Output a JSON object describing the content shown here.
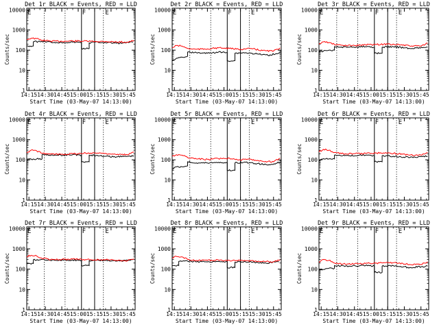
{
  "chart_data": [
    {
      "type": "line",
      "title": "Det 1r BLACK = Events, RED = LLD",
      "xlabel": "Start Time (03-May-07 14:13:00)",
      "ylabel": "Counts/sec",
      "x_ticks": [
        "14:15",
        "14:30",
        "14:45",
        "15:00",
        "15:15",
        "15:30",
        "15:45"
      ],
      "y_ticks": [
        "1",
        "10",
        "100",
        "1000",
        "10000"
      ],
      "ylim": [
        1,
        12000
      ],
      "y_log": true,
      "solid_lines": [
        "15:03",
        "15:15"
      ],
      "dotted_lines": [
        "14:29",
        "14:48",
        "15:23"
      ],
      "flags": [
        "F",
        "E"
      ],
      "flag_times": [
        "15:03",
        "15:24"
      ],
      "series": [
        {
          "color": "#000000",
          "x": [
            "14:13",
            "14:19",
            "14:19",
            "14:27",
            "14:40",
            "14:55",
            "15:03",
            "15:03",
            "15:10",
            "15:10",
            "15:15",
            "15:25",
            "15:38",
            "15:50"
          ],
          "y": [
            160,
            160,
            260,
            270,
            240,
            250,
            240,
            120,
            120,
            230,
            250,
            240,
            220,
            250
          ]
        },
        {
          "color": "#ff0000",
          "x": [
            "14:13",
            "14:17",
            "14:22",
            "14:27",
            "14:35",
            "14:45",
            "14:55",
            "15:05",
            "15:15",
            "15:25",
            "15:35",
            "15:45",
            "15:51"
          ],
          "y": [
            340,
            390,
            370,
            310,
            280,
            275,
            285,
            280,
            270,
            270,
            255,
            250,
            300
          ]
        }
      ]
    },
    {
      "type": "line",
      "title": "Det 2r BLACK = Events, RED = LLD",
      "xlabel": "Start Time (03-May-07 14:13:00)",
      "ylabel": "Counts/sec",
      "x_ticks": [
        "14:15",
        "14:30",
        "14:45",
        "15:00",
        "15:15",
        "15:30",
        "15:45"
      ],
      "y_ticks": [
        "1",
        "10",
        "100",
        "1000",
        "10000"
      ],
      "ylim": [
        1,
        12000
      ],
      "y_log": true,
      "solid_lines": [
        "15:03",
        "15:15"
      ],
      "dotted_lines": [
        "14:29",
        "14:48",
        "15:23"
      ],
      "flags": [
        "F",
        "E"
      ],
      "flag_times": [
        "15:03",
        "15:24"
      ],
      "series": [
        {
          "color": "#000000",
          "x": [
            "14:13",
            "14:17",
            "14:22",
            "14:27",
            "14:27",
            "14:35",
            "14:45",
            "14:55",
            "15:03",
            "15:03",
            "15:10",
            "15:10",
            "15:18",
            "15:30",
            "15:40",
            "15:51"
          ],
          "y": [
            30,
            40,
            45,
            50,
            80,
            75,
            70,
            80,
            75,
            30,
            30,
            70,
            75,
            65,
            55,
            75
          ]
        },
        {
          "color": "#ff0000",
          "x": [
            "14:13",
            "14:17",
            "14:22",
            "14:27",
            "14:35",
            "14:45",
            "14:55",
            "15:05",
            "15:15",
            "15:25",
            "15:35",
            "15:45",
            "15:51"
          ],
          "y": [
            130,
            170,
            160,
            120,
            110,
            115,
            130,
            120,
            110,
            120,
            95,
            90,
            130
          ]
        }
      ]
    },
    {
      "type": "line",
      "title": "Det 3r BLACK = Events, RED = LLD",
      "xlabel": "Start Time (03-May-07 14:13:00)",
      "ylabel": "Counts/sec",
      "x_ticks": [
        "14:15",
        "14:30",
        "14:45",
        "15:00",
        "15:15",
        "15:30",
        "15:45"
      ],
      "y_ticks": [
        "1",
        "10",
        "100",
        "1000",
        "10000"
      ],
      "ylim": [
        1,
        12000
      ],
      "y_log": true,
      "solid_lines": [
        "15:03",
        "15:15"
      ],
      "dotted_lines": [
        "14:29",
        "14:48",
        "15:23"
      ],
      "flags": [
        "F",
        "E"
      ],
      "flag_times": [
        "15:03",
        "15:24"
      ],
      "series": [
        {
          "color": "#000000",
          "x": [
            "14:13",
            "14:19",
            "14:22",
            "14:27",
            "14:27",
            "14:40",
            "14:55",
            "15:03",
            "15:03",
            "15:10",
            "15:10",
            "15:20",
            "15:35",
            "15:51"
          ],
          "y": [
            80,
            95,
            100,
            100,
            150,
            140,
            150,
            140,
            70,
            70,
            140,
            150,
            120,
            140
          ]
        },
        {
          "color": "#ff0000",
          "x": [
            "14:13",
            "14:17",
            "14:22",
            "14:27",
            "14:35",
            "14:45",
            "14:55",
            "15:05",
            "15:15",
            "15:25",
            "15:35",
            "15:45",
            "15:51"
          ],
          "y": [
            200,
            260,
            240,
            190,
            170,
            170,
            185,
            190,
            200,
            190,
            160,
            160,
            220
          ]
        }
      ]
    },
    {
      "type": "line",
      "title": "Det 4r BLACK = Events, RED = LLD",
      "xlabel": "Start Time (03-May-07 14:13:00)",
      "ylabel": "Counts/sec",
      "x_ticks": [
        "14:15",
        "14:30",
        "14:45",
        "15:00",
        "15:15",
        "15:30",
        "15:45"
      ],
      "y_ticks": [
        "1",
        "10",
        "100",
        "1000",
        "10000"
      ],
      "ylim": [
        1,
        12000
      ],
      "y_log": true,
      "solid_lines": [
        "15:03",
        "15:15"
      ],
      "dotted_lines": [
        "14:29",
        "14:48",
        "15:23"
      ],
      "flags": [
        "F",
        "E"
      ],
      "flag_times": [
        "15:03",
        "15:24"
      ],
      "series": [
        {
          "color": "#000000",
          "x": [
            "14:13",
            "14:19",
            "14:22",
            "14:27",
            "14:27",
            "14:40",
            "14:55",
            "15:03",
            "15:03",
            "15:10",
            "15:10",
            "15:20",
            "15:35",
            "15:51"
          ],
          "y": [
            100,
            110,
            110,
            110,
            180,
            170,
            180,
            170,
            80,
            80,
            170,
            160,
            140,
            160
          ]
        },
        {
          "color": "#ff0000",
          "x": [
            "14:13",
            "14:17",
            "14:22",
            "14:27",
            "14:35",
            "14:45",
            "14:55",
            "15:05",
            "15:15",
            "15:25",
            "15:35",
            "15:45",
            "15:51"
          ],
          "y": [
            220,
            300,
            280,
            210,
            190,
            190,
            200,
            210,
            220,
            210,
            180,
            180,
            240
          ]
        }
      ]
    },
    {
      "type": "line",
      "title": "Det 5r BLACK = Events, RED = LLD",
      "xlabel": "Start Time (03-May-07 14:13:00)",
      "ylabel": "Counts/sec",
      "x_ticks": [
        "14:15",
        "14:30",
        "14:45",
        "15:00",
        "15:15",
        "15:30",
        "15:45"
      ],
      "y_ticks": [
        "1",
        "10",
        "100",
        "1000",
        "10000"
      ],
      "ylim": [
        1,
        12000
      ],
      "y_log": true,
      "solid_lines": [
        "15:03",
        "15:15"
      ],
      "dotted_lines": [
        "14:29",
        "14:48",
        "15:23"
      ],
      "flags": [
        "F",
        "E"
      ],
      "flag_times": [
        "15:03",
        "15:24"
      ],
      "series": [
        {
          "color": "#000000",
          "x": [
            "14:13",
            "14:17",
            "14:22",
            "14:27",
            "14:27",
            "14:35",
            "14:45",
            "14:55",
            "15:03",
            "15:03",
            "15:10",
            "15:10",
            "15:18",
            "15:30",
            "15:40",
            "15:51"
          ],
          "y": [
            35,
            45,
            45,
            50,
            80,
            70,
            70,
            75,
            70,
            30,
            30,
            70,
            75,
            65,
            55,
            75
          ]
        },
        {
          "color": "#ff0000",
          "x": [
            "14:13",
            "14:17",
            "14:22",
            "14:27",
            "14:35",
            "14:45",
            "14:55",
            "15:05",
            "15:15",
            "15:25",
            "15:35",
            "15:45",
            "15:51"
          ],
          "y": [
            150,
            180,
            170,
            130,
            110,
            105,
            115,
            120,
            100,
            105,
            85,
            80,
            120
          ]
        }
      ]
    },
    {
      "type": "line",
      "title": "Det 6r BLACK = Events, RED = LLD",
      "xlabel": "Start Time (03-May-07 14:13:00)",
      "ylabel": "Counts/sec",
      "x_ticks": [
        "14:15",
        "14:30",
        "14:45",
        "15:00",
        "15:15",
        "15:30",
        "15:45"
      ],
      "y_ticks": [
        "1",
        "10",
        "100",
        "1000",
        "10000"
      ],
      "ylim": [
        1,
        12000
      ],
      "y_log": true,
      "solid_lines": [
        "15:03",
        "15:15"
      ],
      "dotted_lines": [
        "14:29",
        "14:48",
        "15:23"
      ],
      "flags": [
        "F",
        "E"
      ],
      "flag_times": [
        "15:03",
        "15:24"
      ],
      "series": [
        {
          "color": "#000000",
          "x": [
            "14:13",
            "14:19",
            "14:22",
            "14:27",
            "14:27",
            "14:40",
            "14:55",
            "15:03",
            "15:03",
            "15:10",
            "15:10",
            "15:20",
            "15:35",
            "15:51"
          ],
          "y": [
            100,
            110,
            110,
            110,
            170,
            160,
            170,
            160,
            80,
            80,
            160,
            150,
            130,
            150
          ]
        },
        {
          "color": "#ff0000",
          "x": [
            "14:13",
            "14:17",
            "14:22",
            "14:27",
            "14:35",
            "14:45",
            "14:55",
            "15:05",
            "15:15",
            "15:25",
            "15:35",
            "15:45",
            "15:51"
          ],
          "y": [
            250,
            330,
            300,
            230,
            200,
            200,
            210,
            220,
            220,
            200,
            170,
            170,
            230
          ]
        }
      ]
    },
    {
      "type": "line",
      "title": "Det 7r BLACK = Events, RED = LLD",
      "xlabel": "Start Time (03-May-07 14:13:00)",
      "ylabel": "Counts/sec",
      "x_ticks": [
        "14:15",
        "14:30",
        "14:45",
        "15:00",
        "15:15",
        "15:30",
        "15:45"
      ],
      "y_ticks": [
        "1",
        "10",
        "100",
        "1000",
        "10000"
      ],
      "ylim": [
        1,
        12000
      ],
      "y_log": true,
      "solid_lines": [
        "15:03",
        "15:15"
      ],
      "dotted_lines": [
        "14:29",
        "14:48",
        "15:23"
      ],
      "flags": [
        "F",
        "E"
      ],
      "flag_times": [
        "15:03",
        "15:24"
      ],
      "series": [
        {
          "color": "#000000",
          "x": [
            "14:13",
            "14:19",
            "14:19",
            "14:27",
            "14:40",
            "14:55",
            "15:03",
            "15:03",
            "15:10",
            "15:10",
            "15:15",
            "15:25",
            "15:38",
            "15:50"
          ],
          "y": [
            190,
            190,
            290,
            300,
            270,
            280,
            270,
            150,
            150,
            260,
            280,
            270,
            250,
            290
          ]
        },
        {
          "color": "#ff0000",
          "x": [
            "14:13",
            "14:17",
            "14:22",
            "14:27",
            "14:35",
            "14:45",
            "14:55",
            "15:05",
            "15:15",
            "15:25",
            "15:35",
            "15:45",
            "15:51"
          ],
          "y": [
            420,
            480,
            450,
            340,
            300,
            300,
            310,
            300,
            290,
            290,
            270,
            260,
            320
          ]
        }
      ]
    },
    {
      "type": "line",
      "title": "Det 8r BLACK = Events, RED = LLD",
      "xlabel": "Start Time (03-May-07 14:13:00)",
      "ylabel": "Counts/sec",
      "x_ticks": [
        "14:15",
        "14:30",
        "14:45",
        "15:00",
        "15:15",
        "15:30",
        "15:45"
      ],
      "y_ticks": [
        "1",
        "10",
        "100",
        "1000",
        "10000"
      ],
      "ylim": [
        1,
        12000
      ],
      "y_log": true,
      "solid_lines": [
        "15:03",
        "15:15"
      ],
      "dotted_lines": [
        "14:29",
        "14:48",
        "15:23"
      ],
      "flags": [
        "F",
        "E"
      ],
      "flag_times": [
        "15:03",
        "15:24"
      ],
      "series": [
        {
          "color": "#000000",
          "x": [
            "14:13",
            "14:19",
            "14:19",
            "14:27",
            "14:40",
            "14:55",
            "15:03",
            "15:03",
            "15:10",
            "15:10",
            "15:15",
            "15:25",
            "15:38",
            "15:50"
          ],
          "y": [
            150,
            150,
            240,
            250,
            230,
            240,
            230,
            120,
            120,
            220,
            240,
            220,
            200,
            230
          ]
        },
        {
          "color": "#ff0000",
          "x": [
            "14:13",
            "14:17",
            "14:22",
            "14:27",
            "14:35",
            "14:45",
            "14:55",
            "15:05",
            "15:15",
            "15:25",
            "15:35",
            "15:45",
            "15:51"
          ],
          "y": [
            360,
            420,
            400,
            300,
            270,
            270,
            280,
            270,
            260,
            260,
            240,
            230,
            290
          ]
        }
      ]
    },
    {
      "type": "line",
      "title": "Det 9r BLACK = Events, RED = LLD",
      "xlabel": "Start Time (03-May-07 14:13:00)",
      "ylabel": "Counts/sec",
      "x_ticks": [
        "14:15",
        "14:30",
        "14:45",
        "15:00",
        "15:15",
        "15:30",
        "15:45"
      ],
      "y_ticks": [
        "1",
        "10",
        "100",
        "1000",
        "10000"
      ],
      "ylim": [
        1,
        12000
      ],
      "y_log": true,
      "solid_lines": [
        "15:03",
        "15:15"
      ],
      "dotted_lines": [
        "14:29",
        "14:48",
        "15:23"
      ],
      "flags": [
        "F",
        "E"
      ],
      "flag_times": [
        "15:03",
        "15:24"
      ],
      "series": [
        {
          "color": "#000000",
          "x": [
            "14:13",
            "14:19",
            "14:22",
            "14:27",
            "14:27",
            "14:40",
            "14:55",
            "15:03",
            "15:03",
            "15:10",
            "15:10",
            "15:20",
            "15:35",
            "15:51"
          ],
          "y": [
            90,
            105,
            110,
            110,
            150,
            140,
            150,
            140,
            70,
            70,
            140,
            150,
            120,
            140
          ]
        },
        {
          "color": "#ff0000",
          "x": [
            "14:13",
            "14:17",
            "14:22",
            "14:27",
            "14:35",
            "14:45",
            "14:55",
            "15:05",
            "15:15",
            "15:25",
            "15:35",
            "15:45",
            "15:51"
          ],
          "y": [
            220,
            300,
            270,
            200,
            180,
            180,
            190,
            200,
            210,
            200,
            170,
            170,
            230
          ]
        }
      ]
    }
  ]
}
